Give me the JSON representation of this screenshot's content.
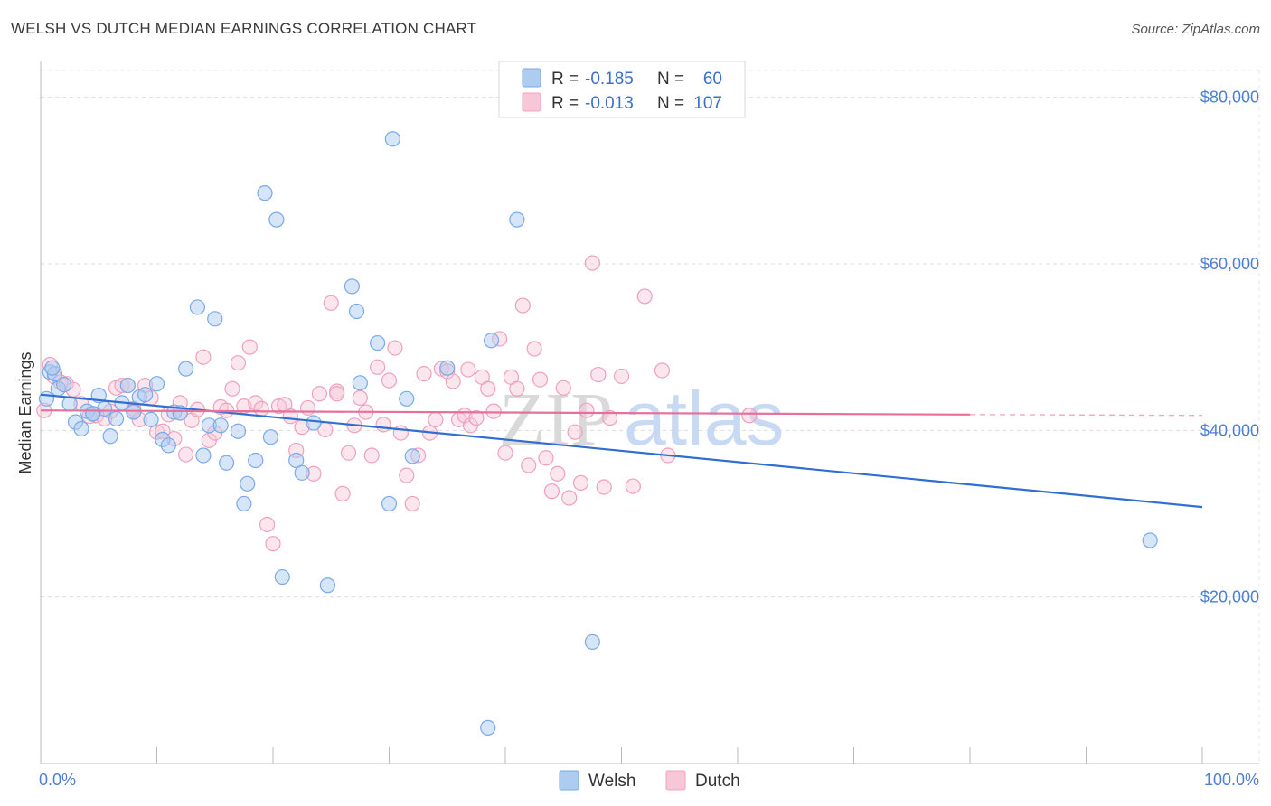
{
  "title": "WELSH VS DUTCH MEDIAN EARNINGS CORRELATION CHART",
  "source": "Source: ZipAtlas.com",
  "colors": {
    "welsh": "#7aaae8",
    "welsh_fill": "#aecbf0",
    "welsh_line": "#2f6fd1",
    "dutch": "#f0a0bd",
    "dutch_fill": "#f7c7d8",
    "dutch_line": "#e5709a",
    "axis_text": "#4a7fd4"
  },
  "legend": {
    "rows": [
      {
        "r_label": "R =",
        "r_value": "-0.185",
        "n_label": "N =",
        "n_value": "60"
      },
      {
        "r_label": "R =",
        "r_value": "-0.013",
        "n_label": "N =",
        "n_value": "107"
      }
    ]
  },
  "bottom_legend": [
    "Welsh",
    "Dutch"
  ],
  "watermark": "ZIPatlas",
  "chart_data": {
    "type": "scatter",
    "title": "WELSH VS DUTCH MEDIAN EARNINGS CORRELATION CHART",
    "ylabel": "Median Earnings",
    "xlabel": "",
    "x_ticks": [
      "0.0%",
      "100.0%"
    ],
    "y_ticks": [
      "$20,000",
      "$40,000",
      "$60,000",
      "$80,000"
    ],
    "xlim": [
      0,
      100
    ],
    "ylim": [
      0,
      83000
    ],
    "grid": true,
    "legend_position": "top-center",
    "series": [
      {
        "name": "Welsh",
        "points": [
          [
            0.5,
            43800
          ],
          [
            0.8,
            47000
          ],
          [
            1.2,
            46800
          ],
          [
            1.5,
            45000
          ],
          [
            2.0,
            45500
          ],
          [
            2.5,
            43200
          ],
          [
            3.0,
            41000
          ],
          [
            3.5,
            40200
          ],
          [
            4.0,
            42300
          ],
          [
            4.5,
            42000
          ],
          [
            5.0,
            44200
          ],
          [
            5.5,
            42600
          ],
          [
            6.0,
            39300
          ],
          [
            6.5,
            41400
          ],
          [
            7.0,
            43300
          ],
          [
            7.5,
            45400
          ],
          [
            8.0,
            42200
          ],
          [
            8.5,
            44000
          ],
          [
            9.0,
            44300
          ],
          [
            9.5,
            41300
          ],
          [
            10.0,
            45600
          ],
          [
            10.5,
            38900
          ],
          [
            11.0,
            38200
          ],
          [
            11.5,
            42200
          ],
          [
            12.0,
            42100
          ],
          [
            12.5,
            47400
          ],
          [
            13.5,
            54800
          ],
          [
            14.0,
            37000
          ],
          [
            14.5,
            40600
          ],
          [
            15.0,
            53400
          ],
          [
            15.5,
            40600
          ],
          [
            16.0,
            36100
          ],
          [
            17.0,
            39900
          ],
          [
            17.5,
            31200
          ],
          [
            17.8,
            33600
          ],
          [
            18.5,
            36400
          ],
          [
            19.3,
            68500
          ],
          [
            19.8,
            39200
          ],
          [
            20.3,
            65300
          ],
          [
            20.8,
            22400
          ],
          [
            22.0,
            36400
          ],
          [
            22.5,
            34900
          ],
          [
            23.5,
            40900
          ],
          [
            24.7,
            21400
          ],
          [
            26.8,
            57300
          ],
          [
            27.2,
            54300
          ],
          [
            27.5,
            45700
          ],
          [
            29.0,
            50500
          ],
          [
            30.0,
            31200
          ],
          [
            31.5,
            43800
          ],
          [
            32.0,
            36900
          ],
          [
            30.3,
            75000
          ],
          [
            35.0,
            47500
          ],
          [
            38.5,
            4300
          ],
          [
            38.8,
            50800
          ],
          [
            41.0,
            65300
          ],
          [
            47.5,
            14600
          ],
          [
            95.5,
            26800
          ],
          [
            1.0,
            47500
          ],
          [
            4.5,
            42000
          ]
        ],
        "trend": {
          "x": [
            0,
            100
          ],
          "y": [
            44300,
            30800
          ]
        }
      },
      {
        "name": "Dutch",
        "points": [
          [
            0.3,
            42400
          ],
          [
            0.8,
            47900
          ],
          [
            1.2,
            46400
          ],
          [
            1.7,
            45800
          ],
          [
            2.2,
            45600
          ],
          [
            2.8,
            44900
          ],
          [
            3.5,
            43200
          ],
          [
            4.2,
            41700
          ],
          [
            4.8,
            41800
          ],
          [
            5.5,
            41400
          ],
          [
            6.0,
            42300
          ],
          [
            6.5,
            45100
          ],
          [
            7.0,
            45400
          ],
          [
            7.5,
            45400
          ],
          [
            8.0,
            42600
          ],
          [
            8.5,
            41300
          ],
          [
            9.0,
            45400
          ],
          [
            9.5,
            43900
          ],
          [
            10.0,
            39800
          ],
          [
            10.5,
            39900
          ],
          [
            11.0,
            41900
          ],
          [
            11.5,
            39000
          ],
          [
            12.0,
            43300
          ],
          [
            12.5,
            37100
          ],
          [
            13.0,
            41200
          ],
          [
            13.5,
            42500
          ],
          [
            14.0,
            48800
          ],
          [
            14.5,
            38800
          ],
          [
            15.0,
            39700
          ],
          [
            15.5,
            42800
          ],
          [
            16.0,
            42400
          ],
          [
            16.5,
            45000
          ],
          [
            17.0,
            48100
          ],
          [
            17.5,
            42900
          ],
          [
            18.0,
            50000
          ],
          [
            18.5,
            43300
          ],
          [
            19.0,
            42600
          ],
          [
            19.5,
            28700
          ],
          [
            20.0,
            26400
          ],
          [
            20.5,
            42900
          ],
          [
            21.0,
            43100
          ],
          [
            21.5,
            41700
          ],
          [
            22.0,
            37600
          ],
          [
            22.5,
            40400
          ],
          [
            23.0,
            42700
          ],
          [
            23.5,
            34800
          ],
          [
            24.0,
            44400
          ],
          [
            24.5,
            40100
          ],
          [
            25.0,
            55300
          ],
          [
            25.5,
            44700
          ],
          [
            26.0,
            32400
          ],
          [
            26.5,
            37300
          ],
          [
            27.0,
            40600
          ],
          [
            27.5,
            43900
          ],
          [
            28.0,
            42200
          ],
          [
            28.5,
            37000
          ],
          [
            29.0,
            47600
          ],
          [
            29.5,
            40700
          ],
          [
            30.0,
            46000
          ],
          [
            30.5,
            49900
          ],
          [
            31.0,
            39700
          ],
          [
            31.5,
            34600
          ],
          [
            32.0,
            31200
          ],
          [
            32.5,
            37000
          ],
          [
            33.0,
            46800
          ],
          [
            33.5,
            39700
          ],
          [
            34.0,
            41300
          ],
          [
            34.5,
            47400
          ],
          [
            35.0,
            47100
          ],
          [
            35.5,
            45900
          ],
          [
            36.0,
            41300
          ],
          [
            36.5,
            41800
          ],
          [
            37.0,
            40600
          ],
          [
            37.5,
            41500
          ],
          [
            38.0,
            46400
          ],
          [
            38.5,
            45000
          ],
          [
            39.0,
            42300
          ],
          [
            39.5,
            51000
          ],
          [
            40.0,
            37300
          ],
          [
            40.5,
            46400
          ],
          [
            41.0,
            45000
          ],
          [
            41.5,
            55000
          ],
          [
            42.0,
            35800
          ],
          [
            42.5,
            49800
          ],
          [
            43.0,
            46100
          ],
          [
            43.5,
            36700
          ],
          [
            44.0,
            32700
          ],
          [
            44.5,
            34800
          ],
          [
            45.0,
            45100
          ],
          [
            45.5,
            31900
          ],
          [
            46.0,
            39800
          ],
          [
            46.5,
            33700
          ],
          [
            47.0,
            42400
          ],
          [
            47.5,
            60100
          ],
          [
            48.0,
            46700
          ],
          [
            48.5,
            33200
          ],
          [
            49.0,
            41500
          ],
          [
            50.0,
            46500
          ],
          [
            51.0,
            33300
          ],
          [
            52.0,
            56100
          ],
          [
            53.5,
            47200
          ],
          [
            54.0,
            37000
          ],
          [
            61.0,
            41800
          ],
          [
            8.0,
            42300
          ],
          [
            12.0,
            42100
          ],
          [
            25.5,
            44400
          ],
          [
            36.8,
            47300
          ]
        ],
        "trend": {
          "x": [
            0,
            80
          ],
          "y": [
            42400,
            41900
          ]
        },
        "trend_dashed": {
          "x": [
            80,
            100
          ],
          "y": [
            41900,
            41800
          ]
        }
      }
    ]
  }
}
